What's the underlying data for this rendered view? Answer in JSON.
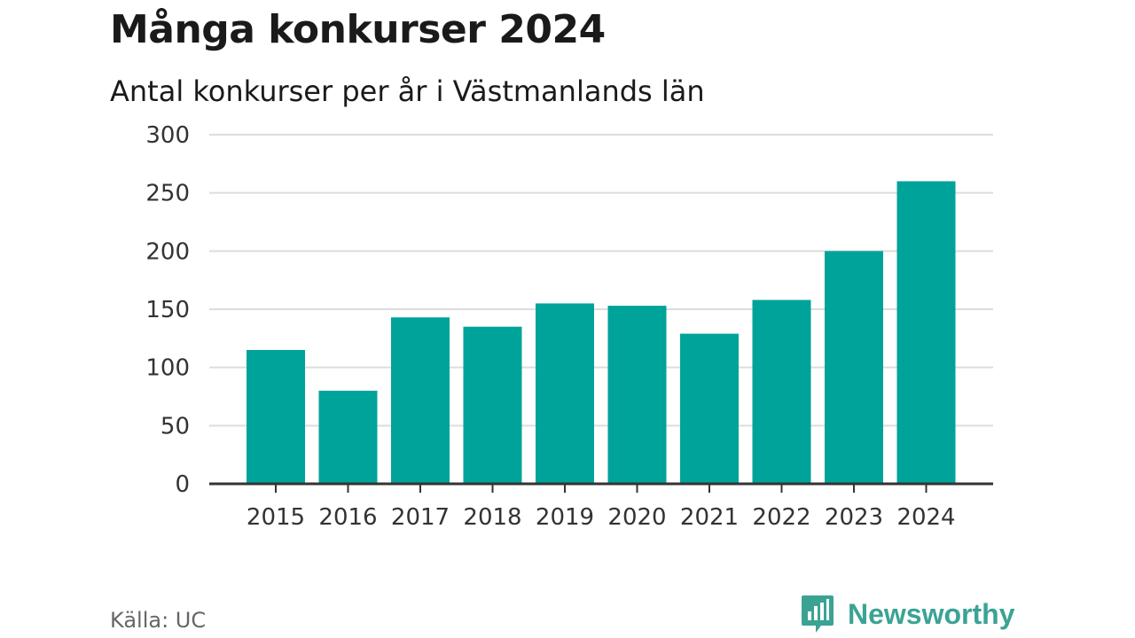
{
  "title": "Många konkurser 2024",
  "subtitle": "Antal konkurser per år i Västmanlands län",
  "source": "Källa: UC",
  "brand": {
    "name": "Newsworthy",
    "color": "#3aa394",
    "icon": "newsworthy-logo-icon"
  },
  "colors": {
    "bar": "#00a39a",
    "grid": "#dddddd",
    "axis": "#333333",
    "text": "#333333"
  },
  "chart_data": {
    "type": "bar",
    "title": "Många konkurser 2024",
    "subtitle": "Antal konkurser per år i Västmanlands län",
    "xlabel": "",
    "ylabel": "",
    "categories": [
      "2015",
      "2016",
      "2017",
      "2018",
      "2019",
      "2020",
      "2021",
      "2022",
      "2023",
      "2024"
    ],
    "values": [
      115,
      80,
      143,
      135,
      155,
      153,
      129,
      158,
      200,
      260
    ],
    "ylim": [
      0,
      300
    ],
    "yticks": [
      "0",
      "50",
      "100",
      "150",
      "200",
      "250",
      "300"
    ],
    "grid": true,
    "legend": "none"
  }
}
